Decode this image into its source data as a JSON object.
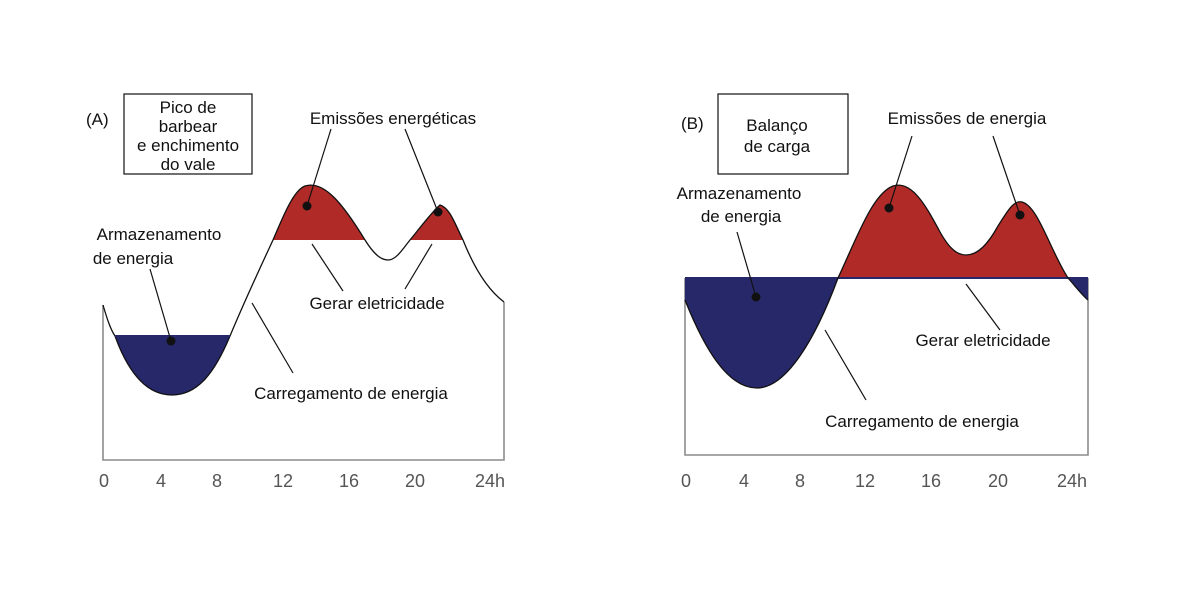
{
  "colors": {
    "storage": "#27286a",
    "generate": "#b02a28",
    "frame": "#8c8c8c"
  },
  "x_ticks": [
    "0",
    "4",
    "8",
    "12",
    "16",
    "20",
    "24h"
  ],
  "panel_a": {
    "tag": "(A)",
    "box_lines": [
      "Pico de",
      "barbear",
      "e enchimento",
      "do vale"
    ],
    "emissions": "Emissões energéticas",
    "storage": [
      "Armazenamento",
      "de energia"
    ],
    "generate": "Gerar eletricidade",
    "charging": "Carregamento de energia"
  },
  "panel_b": {
    "tag": "(B)",
    "box_lines": [
      "Balanço",
      "de carga"
    ],
    "emissions": "Emissões de energia",
    "storage": [
      "Armazenamento",
      "de energia"
    ],
    "generate": "Gerar eletricidade",
    "charging": "Carregamento de energia"
  }
}
